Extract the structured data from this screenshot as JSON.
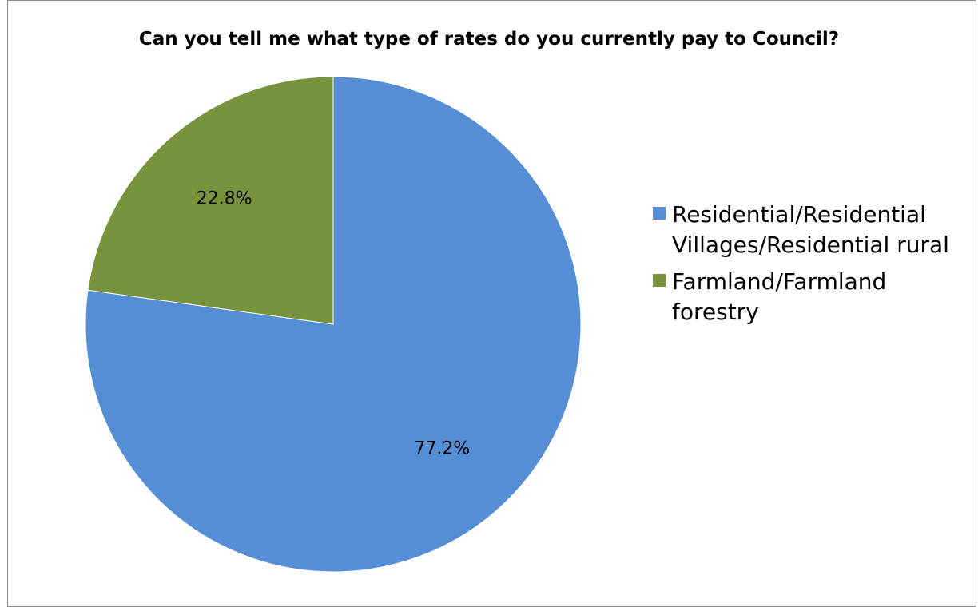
{
  "chart_data": {
    "type": "pie",
    "title": "Can you tell me what type of rates do you currently pay to Council?",
    "slices": [
      {
        "label": "Residential/Residential Villages/Residential rural",
        "value": 77.2,
        "display": "77.2%",
        "color": "#558ED5"
      },
      {
        "label": "Farmland/Farmland forestry",
        "value": 22.8,
        "display": "22.8%",
        "color": "#77933C"
      }
    ],
    "legend_position": "right"
  }
}
